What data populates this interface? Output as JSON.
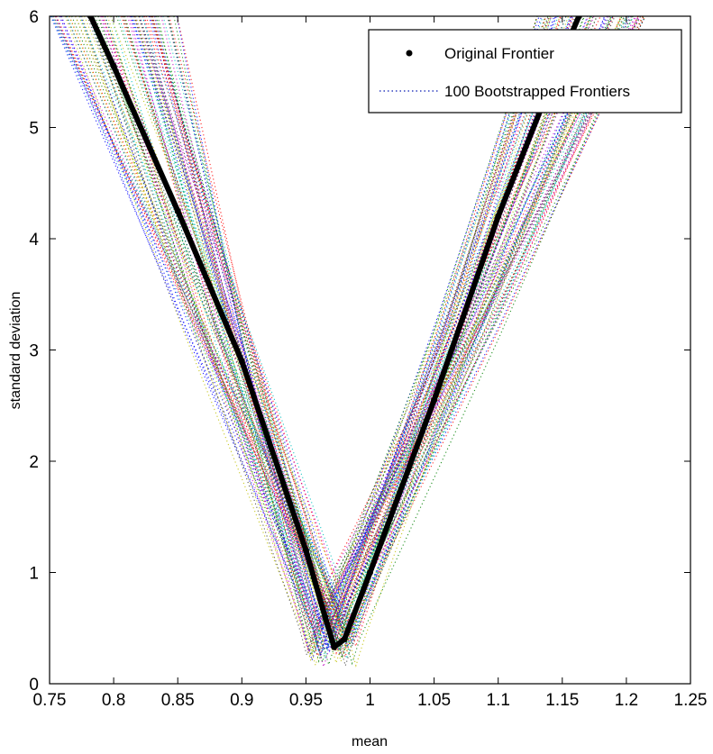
{
  "chart_data": {
    "type": "line",
    "xlabel": "mean",
    "ylabel": "standard deviation",
    "xlim": [
      0.75,
      1.25
    ],
    "ylim": [
      0,
      6
    ],
    "xticks": [
      0.75,
      0.8,
      0.85,
      0.9,
      0.95,
      1,
      1.05,
      1.1,
      1.15,
      1.2,
      1.25
    ],
    "xtick_labels": [
      "0.75",
      "0.8",
      "0.85",
      "0.9",
      "0.95",
      "1",
      "1.05",
      "1.1",
      "1.15",
      "1.2",
      "1.25"
    ],
    "yticks": [
      0,
      1,
      2,
      3,
      4,
      5,
      6
    ],
    "ytick_labels": [
      "0",
      "1",
      "2",
      "3",
      "4",
      "5",
      "6"
    ],
    "grid": false,
    "legend_position": "top-right",
    "series": [
      {
        "name": "Original Frontier",
        "style": "thick-solid-marker",
        "color": "#000000",
        "x": [
          0.782,
          0.8,
          0.85,
          0.9,
          0.95,
          0.965,
          0.972,
          0.98,
          1.0,
          1.05,
          1.1,
          1.15,
          1.163
        ],
        "y": [
          6.0,
          5.55,
          4.25,
          2.9,
          1.2,
          0.6,
          0.33,
          0.4,
          1.0,
          2.55,
          4.2,
          5.65,
          6.0
        ]
      },
      {
        "name": "100 Bootstrapped Frontiers",
        "style": "dotted",
        "count": 100,
        "min_x_range": [
          0.95,
          0.99
        ],
        "min_y_range": [
          0.15,
          0.55
        ],
        "left_x_at_y6_range": [
          0.75,
          0.85
        ],
        "right_x_at_y6_range": [
          1.13,
          1.215
        ]
      }
    ],
    "colors": {
      "bootstrap_palette": [
        "#0000ff",
        "#008000",
        "#ff0000",
        "#00bfbf",
        "#bf00bf",
        "#bfbf00",
        "#404040"
      ],
      "axes": "#000000",
      "background": "#ffffff"
    }
  }
}
